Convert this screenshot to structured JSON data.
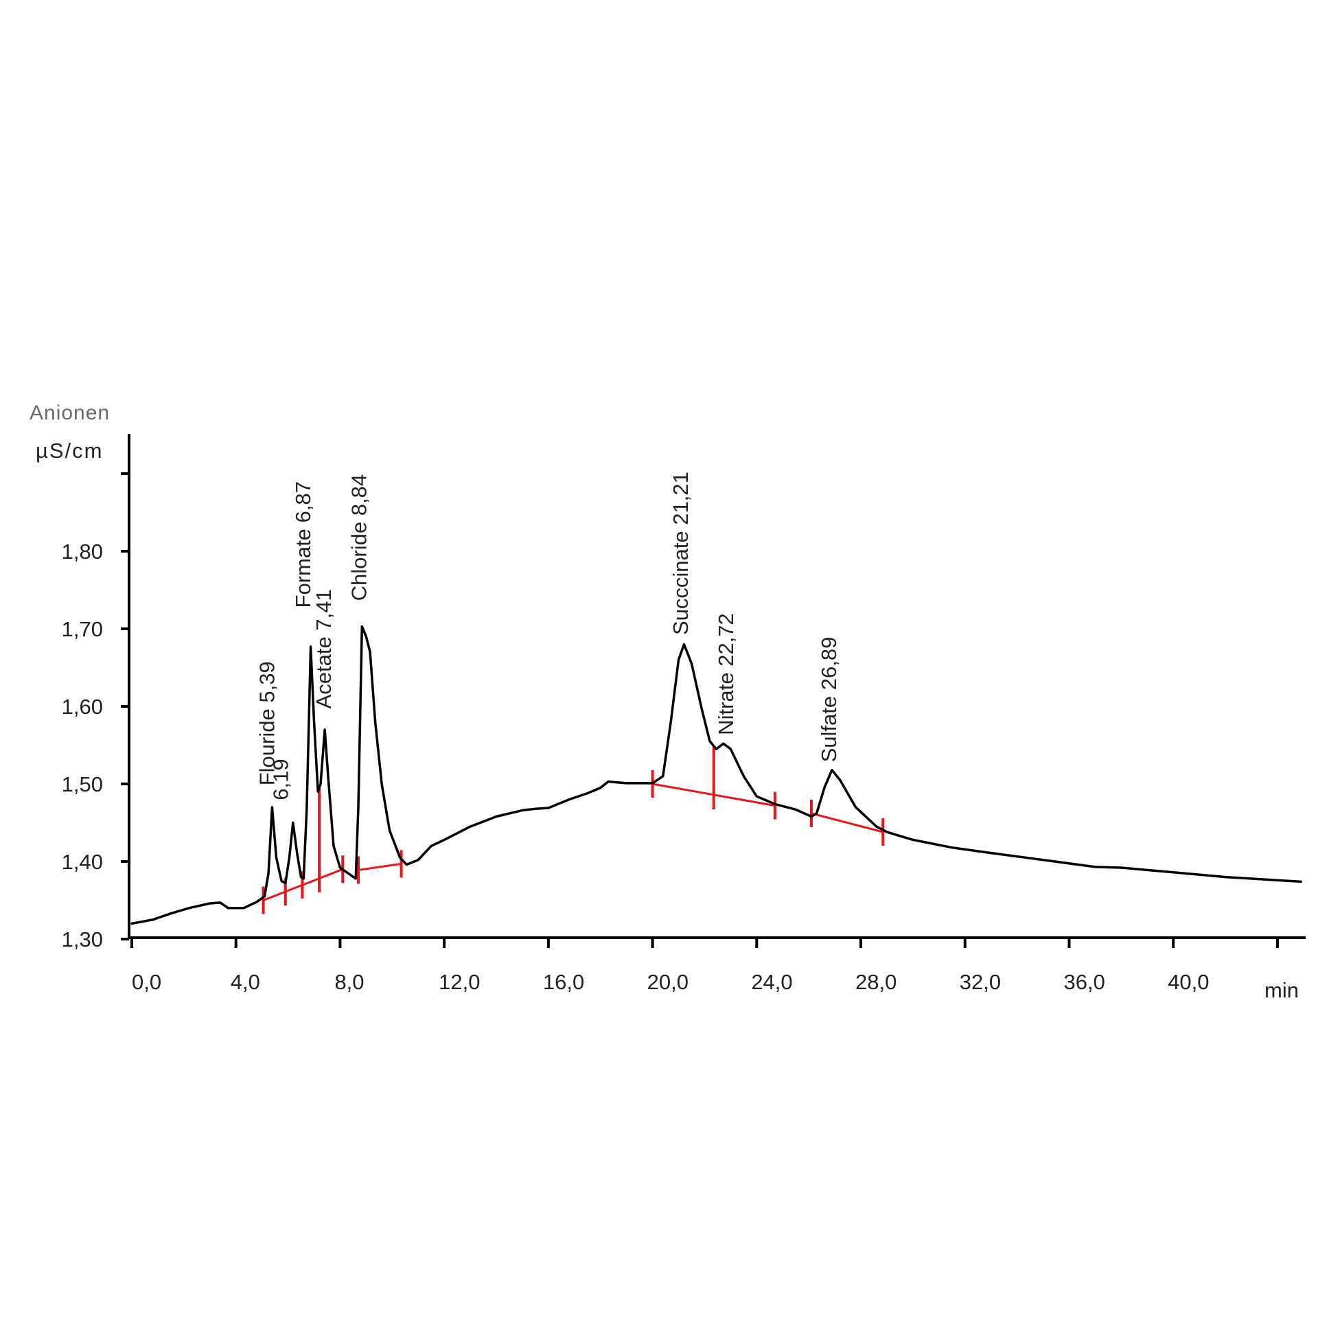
{
  "chart_data": {
    "type": "line",
    "title": "Anionen",
    "xlabel": "min",
    "ylabel": "µS/cm",
    "xlim": [
      0,
      44.5
    ],
    "ylim": [
      1.3,
      1.9
    ],
    "grid": false,
    "legend": null,
    "x_ticks": [
      0,
      4,
      8,
      12,
      16,
      20,
      24,
      28,
      32,
      36,
      40,
      44
    ],
    "x_tick_labels": [
      "0,0",
      "4,0",
      "8,0",
      "12,0",
      "16,0",
      "20,0",
      "24,0",
      "28,0",
      "32,0",
      "36,0",
      "40,0",
      ""
    ],
    "y_ticks": [
      1.3,
      1.4,
      1.5,
      1.6,
      1.7,
      1.8,
      1.9
    ],
    "y_tick_labels": [
      "1,30",
      "1,40",
      "1,50",
      "1,60",
      "1,70",
      "1,80",
      ""
    ],
    "series": [
      {
        "name": "Anionen",
        "color": "#000000",
        "x": [
          0,
          0.8,
          1.5,
          2.2,
          3.0,
          3.4,
          3.7,
          4.3,
          4.8,
          5.1,
          5.25,
          5.39,
          5.55,
          5.75,
          5.9,
          6.05,
          6.19,
          6.35,
          6.5,
          6.6,
          6.72,
          6.87,
          7.0,
          7.15,
          7.25,
          7.41,
          7.55,
          7.75,
          8.0,
          8.3,
          8.6,
          8.7,
          8.84,
          9.0,
          9.15,
          9.35,
          9.6,
          9.9,
          10.3,
          10.55,
          11.0,
          11.5,
          12.0,
          13.0,
          14.0,
          15.0,
          15.5,
          16.0,
          16.8,
          17.5,
          18.0,
          18.3,
          19.0,
          20.0,
          20.4,
          20.7,
          21.0,
          21.21,
          21.5,
          21.9,
          22.2,
          22.45,
          22.72,
          23.0,
          23.5,
          24.0,
          24.7,
          25.5,
          26.1,
          26.3,
          26.6,
          26.89,
          27.2,
          27.8,
          28.6,
          29.0,
          30.0,
          31.5,
          33.0,
          35.0,
          37.0,
          38.0,
          40.0,
          42.0,
          44.9
        ],
        "y": [
          1.32,
          1.325,
          1.333,
          1.34,
          1.346,
          1.347,
          1.34,
          1.34,
          1.348,
          1.355,
          1.385,
          1.47,
          1.405,
          1.375,
          1.372,
          1.405,
          1.45,
          1.41,
          1.38,
          1.378,
          1.47,
          1.677,
          1.58,
          1.49,
          1.5,
          1.57,
          1.505,
          1.42,
          1.392,
          1.385,
          1.378,
          1.47,
          1.703,
          1.69,
          1.67,
          1.58,
          1.5,
          1.44,
          1.405,
          1.396,
          1.402,
          1.42,
          1.428,
          1.445,
          1.458,
          1.466,
          1.468,
          1.469,
          1.48,
          1.488,
          1.495,
          1.503,
          1.501,
          1.501,
          1.51,
          1.58,
          1.66,
          1.68,
          1.655,
          1.595,
          1.555,
          1.545,
          1.552,
          1.545,
          1.51,
          1.484,
          1.474,
          1.467,
          1.458,
          1.462,
          1.495,
          1.518,
          1.505,
          1.47,
          1.445,
          1.438,
          1.428,
          1.418,
          1.411,
          1.402,
          1.393,
          1.392,
          1.386,
          1.38,
          1.374
        ]
      }
    ],
    "peaks": [
      {
        "label": "Flouride 5,39",
        "rt": 5.39,
        "label_x": 5.47,
        "label_bottom_value": 1.498
      },
      {
        "label": "6,19",
        "rt": 6.19,
        "label_x": 6.0,
        "label_bottom_value": 1.479
      },
      {
        "label": "Formate 6,87",
        "rt": 6.87,
        "label_x": 6.85,
        "label_bottom_value": 1.727
      },
      {
        "label": "Acetate 7,41",
        "rt": 7.41,
        "label_x": 7.65,
        "label_bottom_value": 1.597
      },
      {
        "label": "Chloride 8,84",
        "rt": 8.84,
        "label_x": 9.0,
        "label_bottom_value": 1.736
      },
      {
        "label": "Succcinate 21,21",
        "rt": 21.21,
        "label_x": 21.35,
        "label_bottom_value": 1.692
      },
      {
        "label": "Nitrate 22,72",
        "rt": 22.72,
        "label_x": 23.1,
        "label_bottom_value": 1.563
      },
      {
        "label": "Sulfate 26,89",
        "rt": 26.89,
        "label_x": 27.05,
        "label_bottom_value": 1.528
      }
    ],
    "baselines": [
      {
        "color": "#e8161b",
        "x": [
          5.05,
          10.35
        ],
        "segments": [
          [
            5.05,
            1.35,
            8.1,
            1.39
          ],
          [
            8.7,
            1.389,
            10.35,
            1.397
          ]
        ],
        "marks": [
          [
            5.05,
            1.35
          ],
          [
            5.9,
            1.361
          ],
          [
            6.55,
            1.37
          ],
          [
            7.2,
            1.378,
            "long"
          ],
          [
            8.1,
            1.39
          ],
          [
            8.7,
            1.389
          ],
          [
            10.35,
            1.397
          ]
        ]
      },
      {
        "color": "#e8161b",
        "segments": [
          [
            20.0,
            1.5,
            24.7,
            1.472
          ],
          [
            26.1,
            1.462,
            28.85,
            1.438
          ]
        ],
        "marks": [
          [
            20.0,
            1.5
          ],
          [
            22.35,
            1.485,
            "long"
          ],
          [
            24.7,
            1.472
          ],
          [
            26.1,
            1.462
          ],
          [
            28.85,
            1.438
          ]
        ]
      }
    ]
  }
}
